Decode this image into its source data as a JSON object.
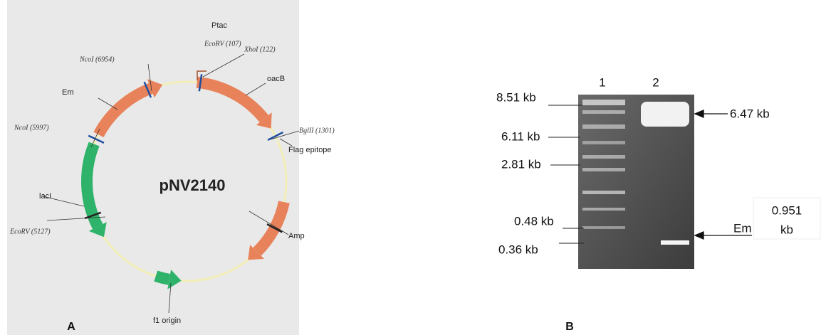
{
  "panel_a": {
    "letter": "A",
    "plasmid": "pNV2140",
    "features": {
      "ptac": "Ptac",
      "ecorv_107": "EcoRV (107)",
      "xhoi": "XhoI (122)",
      "oacb": "oacB",
      "bglii": "BglII (1301)",
      "flag": "Flag epitope",
      "amp": "Amp",
      "f1": "f1 origin",
      "ecorv_5127": "EcoRV (5127)",
      "laci": "lacI",
      "ncoi_5997": "NcoI (5997)",
      "em": "Em",
      "ncoi_6954": "NcoI (6954)"
    }
  },
  "panel_b": {
    "letter": "B",
    "lanes": [
      "1",
      "2"
    ],
    "ladder": [
      "8.51 kb",
      "6.11 kb",
      "2.81 kb",
      "0.48 kb",
      "0.36 kb"
    ],
    "band": "6.47 kb",
    "insert": {
      "label": "Em",
      "size": "0.951",
      "unit": "kb"
    }
  }
}
